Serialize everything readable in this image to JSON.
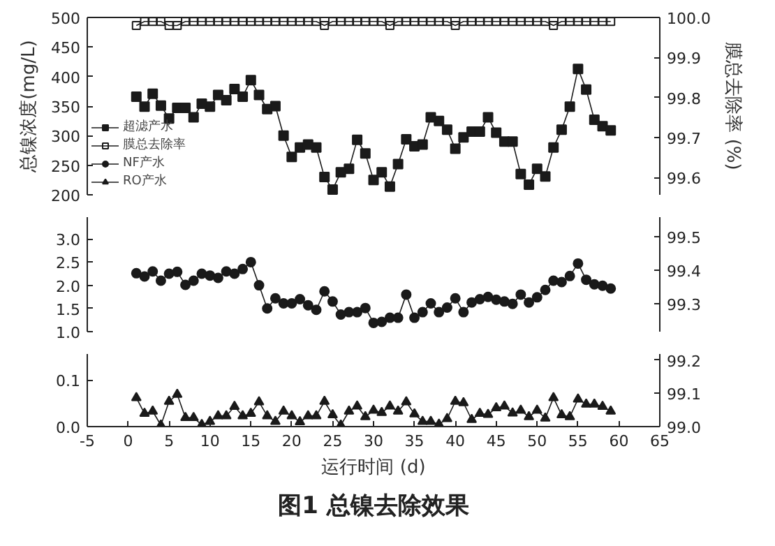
{
  "chart_data": [
    {
      "type": "line",
      "ylabel": "总镍浓度(mg/L)",
      "y2label": "膜总去除率 (%)",
      "legend": "bottom left",
      "tick_labels": "y",
      "x": [
        1,
        2,
        3,
        4,
        5,
        6,
        7,
        8,
        9,
        10,
        11,
        12,
        13,
        14,
        15,
        16,
        17,
        18,
        19,
        20,
        21,
        22,
        23,
        24,
        25,
        26,
        27,
        28,
        29,
        30,
        31,
        32,
        33,
        34,
        35,
        36,
        37,
        38,
        39,
        40,
        41,
        42,
        43,
        44,
        45,
        46,
        47,
        48,
        49,
        50,
        51,
        52,
        53,
        54,
        55,
        56,
        57,
        58,
        59
      ],
      "xlim": [
        -5,
        65
      ],
      "ylim": [
        200,
        500
      ],
      "yticks": [
        200,
        250,
        300,
        350,
        400,
        450,
        500
      ],
      "y2lim": [
        99.557,
        100.0
      ],
      "y2ticks": [
        99.6,
        99.7,
        99.8,
        99.9,
        {
          "value": 100.0,
          "label": "100.0"
        }
      ],
      "series": [
        {
          "name": "超滤产水",
          "color": "#1a1a1a",
          "marker": "square",
          "values": [
            366,
            349,
            371,
            351,
            329,
            347,
            347,
            331,
            354,
            349,
            369,
            360,
            379,
            366,
            394,
            369,
            345,
            350,
            300,
            264,
            280,
            285,
            280,
            230,
            209,
            238,
            244,
            293,
            270,
            225,
            238,
            214,
            252,
            294,
            282,
            285,
            331,
            325,
            310,
            278,
            297,
            307,
            307,
            331,
            305,
            290,
            290,
            235,
            217,
            244,
            231,
            280,
            310,
            349,
            413,
            378,
            327,
            316,
            309
          ]
        },
        {
          "name": "膜总去除率",
          "color": "#1a1a1a",
          "marker": "square_open",
          "axis": "y2",
          "values": [
            99.98,
            99.99,
            99.99,
            99.99,
            99.98,
            99.98,
            99.99,
            99.99,
            99.99,
            99.99,
            99.99,
            99.99,
            99.99,
            99.99,
            99.99,
            99.99,
            99.99,
            99.99,
            99.99,
            99.99,
            99.99,
            99.99,
            99.99,
            99.98,
            99.99,
            99.99,
            99.99,
            99.99,
            99.99,
            99.99,
            99.99,
            99.98,
            99.99,
            99.99,
            99.99,
            99.99,
            99.99,
            99.99,
            99.99,
            99.98,
            99.99,
            99.99,
            99.99,
            99.99,
            99.99,
            99.99,
            99.99,
            99.99,
            99.99,
            99.99,
            99.99,
            99.98,
            99.99,
            99.99,
            99.99,
            99.99,
            99.99,
            99.99,
            99.99
          ]
        }
      ]
    },
    {
      "type": "line",
      "tick_labels": "y",
      "x": [
        1,
        2,
        3,
        4,
        5,
        6,
        7,
        8,
        9,
        10,
        11,
        12,
        13,
        14,
        15,
        16,
        17,
        18,
        19,
        20,
        21,
        22,
        23,
        24,
        25,
        26,
        27,
        28,
        29,
        30,
        31,
        32,
        33,
        34,
        35,
        36,
        37,
        38,
        39,
        40,
        41,
        42,
        43,
        44,
        45,
        46,
        47,
        48,
        49,
        50,
        51,
        52,
        53,
        54,
        55,
        56,
        57,
        58,
        59
      ],
      "xlim": [
        -5,
        65
      ],
      "ylim": [
        1.0,
        3.47
      ],
      "yticks": [
        {
          "value": 1.0,
          "label": "1.0"
        },
        1.5,
        {
          "value": 2.0,
          "label": "2.0"
        },
        2.5,
        {
          "value": 3.0,
          "label": "3.0"
        }
      ],
      "y2lim": [
        99.218,
        99.557
      ],
      "y2ticks": [
        99.3,
        99.4,
        99.5
      ],
      "series": [
        {
          "name": "NF产水",
          "color": "#1a1a1a",
          "marker": "circle",
          "values": [
            2.26,
            2.19,
            2.3,
            2.1,
            2.25,
            2.29,
            2.01,
            2.1,
            2.25,
            2.21,
            2.16,
            2.3,
            2.25,
            2.35,
            2.5,
            2.0,
            1.5,
            1.72,
            1.61,
            1.61,
            1.7,
            1.57,
            1.47,
            1.87,
            1.65,
            1.37,
            1.42,
            1.42,
            1.51,
            1.19,
            1.21,
            1.3,
            1.3,
            1.8,
            1.3,
            1.42,
            1.61,
            1.42,
            1.52,
            1.72,
            1.42,
            1.63,
            1.7,
            1.75,
            1.69,
            1.65,
            1.6,
            1.8,
            1.63,
            1.74,
            1.9,
            2.1,
            2.07,
            2.2,
            2.47,
            2.12,
            2.02,
            1.99,
            1.93
          ]
        }
      ]
    },
    {
      "type": "line",
      "xlabel": "运行时间 (d)",
      "title": "图1 总镍去除效果",
      "x": [
        1,
        2,
        3,
        4,
        5,
        6,
        7,
        8,
        9,
        10,
        11,
        12,
        13,
        14,
        15,
        16,
        17,
        18,
        19,
        20,
        21,
        22,
        23,
        24,
        25,
        26,
        27,
        28,
        29,
        30,
        31,
        32,
        33,
        34,
        35,
        36,
        37,
        38,
        39,
        40,
        41,
        42,
        43,
        44,
        45,
        46,
        47,
        48,
        49,
        50,
        51,
        52,
        53,
        54,
        55,
        56,
        57,
        58,
        59
      ],
      "xlim": [
        -5,
        65
      ],
      "xticks": [
        -5,
        0,
        5,
        10,
        15,
        20,
        25,
        30,
        35,
        40,
        45,
        50,
        55,
        60,
        65
      ],
      "ylim": [
        0,
        0.156
      ],
      "yticks": [
        {
          "value": 0,
          "label": "0.0"
        },
        0.1
      ],
      "y2lim": [
        99.0,
        99.218
      ],
      "y2ticks": [
        {
          "value": 99.0,
          "label": "99.0"
        },
        99.1,
        99.2
      ],
      "series": [
        {
          "name": "RO产水",
          "color": "#1a1a1a",
          "marker": "triangle",
          "values": [
            0.062,
            0.028,
            0.033,
            0.003,
            0.054,
            0.069,
            0.019,
            0.019,
            0.004,
            0.011,
            0.023,
            0.023,
            0.043,
            0.023,
            0.028,
            0.053,
            0.023,
            0.011,
            0.033,
            0.023,
            0.01,
            0.023,
            0.023,
            0.054,
            0.025,
            0.003,
            0.033,
            0.044,
            0.021,
            0.035,
            0.03,
            0.044,
            0.033,
            0.053,
            0.027,
            0.011,
            0.011,
            0.005,
            0.017,
            0.054,
            0.051,
            0.015,
            0.028,
            0.026,
            0.04,
            0.044,
            0.029,
            0.035,
            0.021,
            0.035,
            0.018,
            0.062,
            0.025,
            0.021,
            0.059,
            0.048,
            0.048,
            0.043,
            0.033
          ]
        }
      ]
    }
  ]
}
